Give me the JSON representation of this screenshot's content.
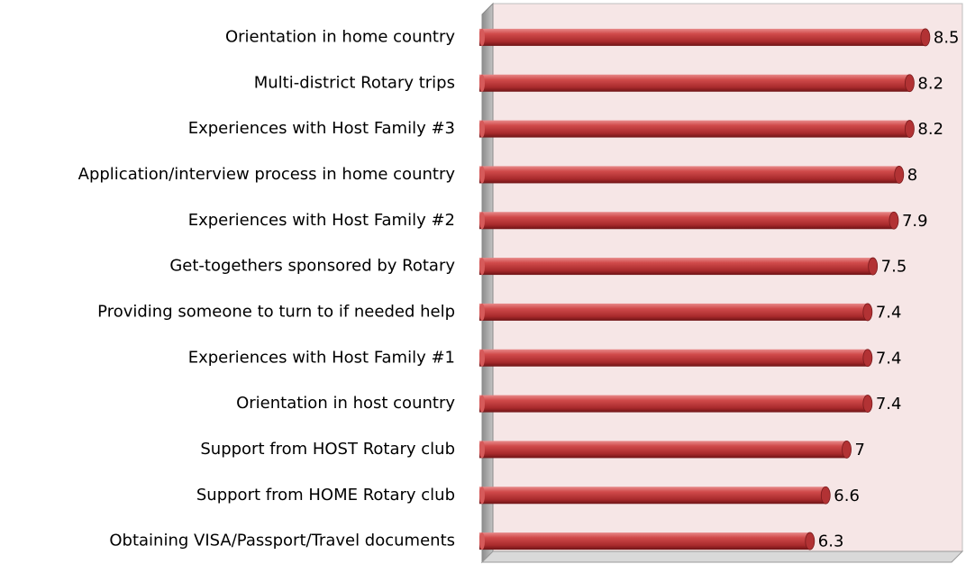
{
  "chart_data": {
    "type": "bar",
    "orientation": "horizontal",
    "categories": [
      "Orientation in home country",
      "Multi-district Rotary trips",
      "Experiences with Host Family #3",
      "Application/interview process in home country",
      "Experiences with Host Family #2",
      "Get-togethers sponsored by Rotary",
      "Providing someone to turn to if needed help",
      "Experiences with Host Family #1",
      "Orientation in host country",
      "Support from HOST Rotary club",
      "Support from HOME Rotary club",
      "Obtaining VISA/Passport/Travel documents"
    ],
    "values": [
      8.5,
      8.2,
      8.2,
      8,
      7.9,
      7.5,
      7.4,
      7.4,
      7.4,
      7,
      6.6,
      6.3
    ],
    "color": "#c0393b",
    "xlim": [
      0,
      9
    ]
  }
}
